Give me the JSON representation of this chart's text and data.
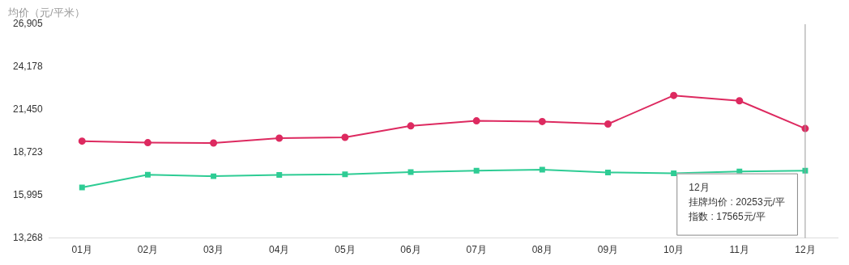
{
  "chart_data": {
    "type": "line",
    "ylabel": "均价（元/平米）",
    "categories": [
      "01月",
      "02月",
      "03月",
      "04月",
      "05月",
      "06月",
      "07月",
      "08月",
      "09月",
      "10月",
      "11月",
      "12月"
    ],
    "series": [
      {
        "color": "#dd2a60",
        "marker": "circle",
        "values": [
          19450,
          19350,
          19330,
          19640,
          19690,
          20420,
          20740,
          20700,
          20540,
          22360,
          22020,
          20253
        ]
      },
      {
        "color": "#2ecc94",
        "marker": "square",
        "values": [
          16490,
          17310,
          17210,
          17290,
          17330,
          17470,
          17560,
          17630,
          17450,
          17400,
          17510,
          17565
        ]
      }
    ],
    "ylim": [
      13268,
      26905
    ],
    "yticks": [
      {
        "value": 13268,
        "label": "13,268"
      },
      {
        "value": 15995,
        "label": "15,995"
      },
      {
        "value": 18723,
        "label": "18,723"
      },
      {
        "value": 21450,
        "label": "21,450"
      },
      {
        "value": 24178,
        "label": "24,178"
      },
      {
        "value": 26905,
        "label": "26,905"
      }
    ],
    "grid": false,
    "legend": false,
    "ref_lines": [
      {
        "axis": "x",
        "value": "12月",
        "color": "#999999"
      }
    ],
    "annotations": [
      "12月",
      "挂牌均价 : 20253元/平",
      "指数 : 17565元/平"
    ]
  }
}
